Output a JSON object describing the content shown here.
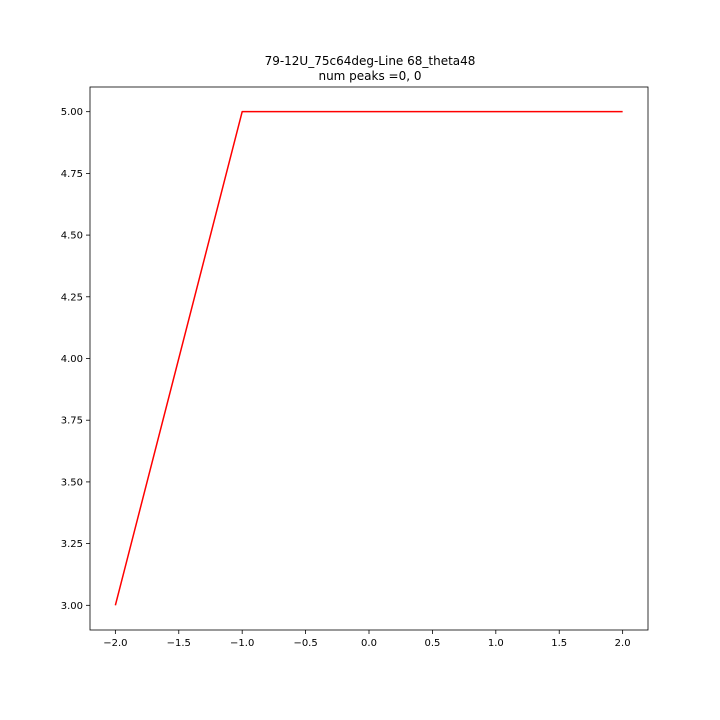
{
  "chart_data": {
    "type": "line",
    "title": "79-12U_75c64deg-Line 68_theta48",
    "subtitle": "num peaks =0, 0",
    "xlabel": "",
    "ylabel": "",
    "xlim": [
      -2.2,
      2.2
    ],
    "ylim": [
      2.9,
      5.1
    ],
    "grid": false,
    "x_ticks": [
      -2.0,
      -1.5,
      -1.0,
      -0.5,
      0.0,
      0.5,
      1.0,
      1.5,
      2.0
    ],
    "x_tick_labels": [
      "−2.0",
      "−1.5",
      "−1.0",
      "−0.5",
      "0.0",
      "0.5",
      "1.0",
      "1.5",
      "2.0"
    ],
    "y_ticks": [
      3.0,
      3.25,
      3.5,
      3.75,
      4.0,
      4.25,
      4.5,
      4.75,
      5.0
    ],
    "y_tick_labels": [
      "3.00",
      "3.25",
      "3.50",
      "3.75",
      "4.00",
      "4.25",
      "4.50",
      "4.75",
      "5.00"
    ],
    "series": [
      {
        "color": "#ff0000",
        "x": [
          -2.0,
          -1.0,
          2.0
        ],
        "y": [
          3.0,
          5.0,
          5.0
        ]
      }
    ]
  }
}
